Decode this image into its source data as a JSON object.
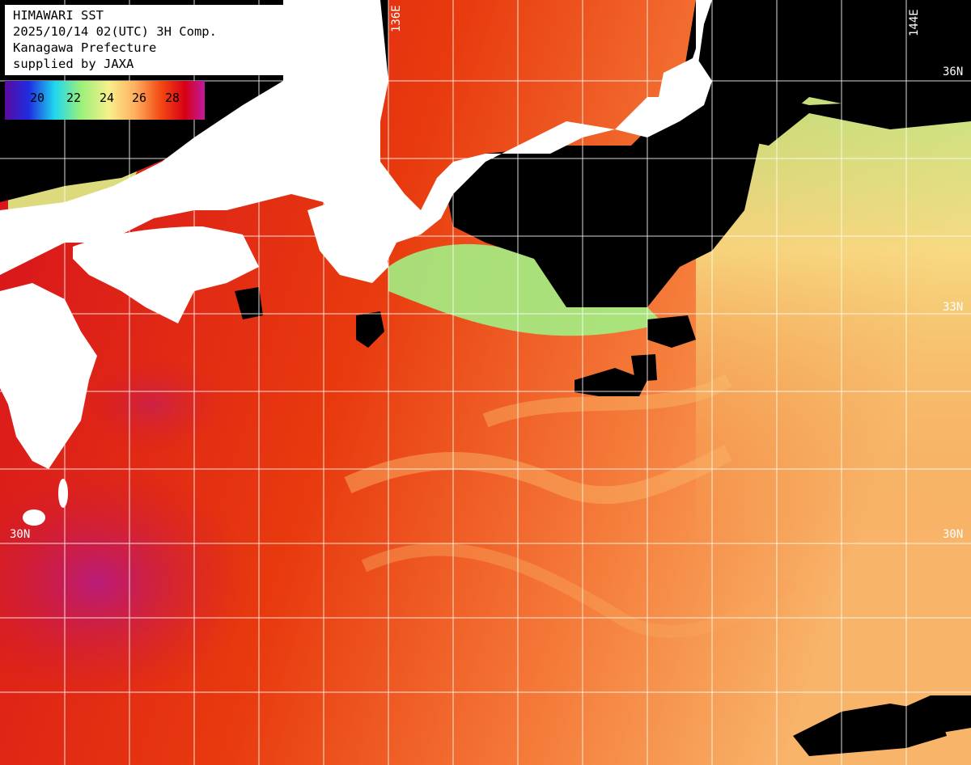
{
  "title_lines": [
    "HIMAWARI SST",
    "2025/10/14 02(UTC) 3H Comp.",
    "Kanagawa Prefecture",
    "supplied by JAXA"
  ],
  "legend": {
    "ticks": [
      "20",
      "22",
      "24",
      "26",
      "28"
    ],
    "colors": [
      "#5a0aa0",
      "#1f2de0",
      "#1fd7f0",
      "#9af07a",
      "#f7f08a",
      "#ffb060",
      "#f24a14",
      "#d80014",
      "#c01aa0"
    ]
  },
  "grid_labels": {
    "lon_136": "136E",
    "lon_144": "144E",
    "lat_36": "36N",
    "lat_33": "33N",
    "lat_30_left": "30N",
    "lat_30_right": "30N"
  },
  "colors": {
    "land": "#ffffff",
    "no_data": "#000000",
    "warm_sea": "#e8380e",
    "hot_sea": "#d2001f",
    "cool_sea": "#a7ef7e",
    "mild_sea": "#fbc46d",
    "grid": "#ffffff"
  }
}
